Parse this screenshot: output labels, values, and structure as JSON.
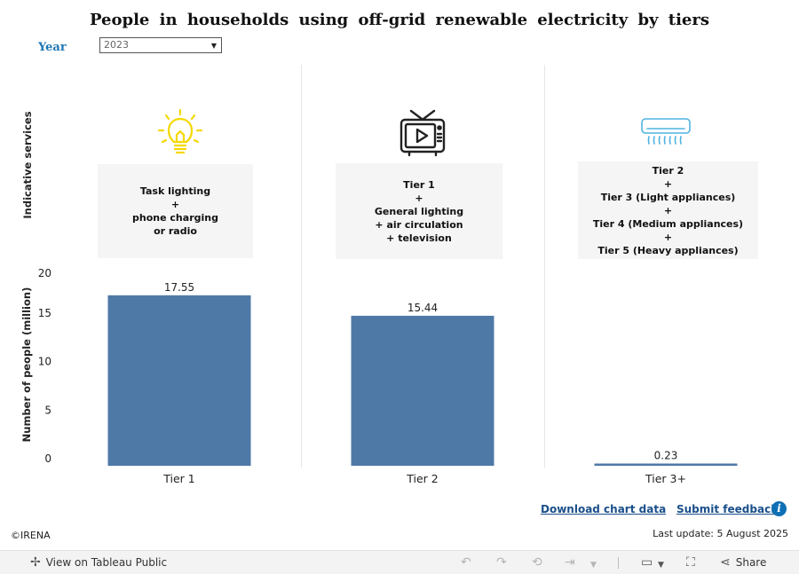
{
  "title": "People in households using off-grid renewable electricity by tiers",
  "filter": {
    "label": "Year",
    "value": "2023"
  },
  "axis_labels": {
    "services": "Indicative services",
    "people": "Number of people (million)"
  },
  "tiers": [
    {
      "icon": "light-bulb-icon",
      "services": "Task lighting\n+\nphone charging\nor radio"
    },
    {
      "icon": "television-icon",
      "services": "Tier 1\n+\nGeneral lighting\n+ air circulation\n+ television"
    },
    {
      "icon": "air-conditioner-icon",
      "services": "Tier 2\n+\nTier 3 (Light appliances)\n+\nTier 4 (Medium appliances)\n+\nTier 5 (Heavy appliances)"
    }
  ],
  "chart_data": {
    "type": "bar",
    "categories": [
      "Tier 1",
      "Tier 2",
      "Tier 3+"
    ],
    "values": [
      17.55,
      15.44,
      0.23
    ],
    "value_labels": [
      "17.55",
      "15.44",
      "0.23"
    ],
    "ylabel": "Number of people (million)",
    "yticks": [
      0,
      5,
      10,
      15,
      20
    ],
    "ylim": [
      0,
      20
    ],
    "bar_color": "#4e79a7",
    "grid": false
  },
  "links": {
    "download": "Download chart data",
    "feedback": "Submit feedback"
  },
  "footer": {
    "copyright": "©IRENA",
    "last_update": "Last update: 5 August 2025"
  },
  "toolbar": {
    "view_on": "View on Tableau Public",
    "share": "Share"
  },
  "colors": {
    "accent": "#1f77b4",
    "link": "#1a4f8a",
    "bulb": "#f5d800",
    "tv": "#222222",
    "ac": "#4fb3e0"
  }
}
